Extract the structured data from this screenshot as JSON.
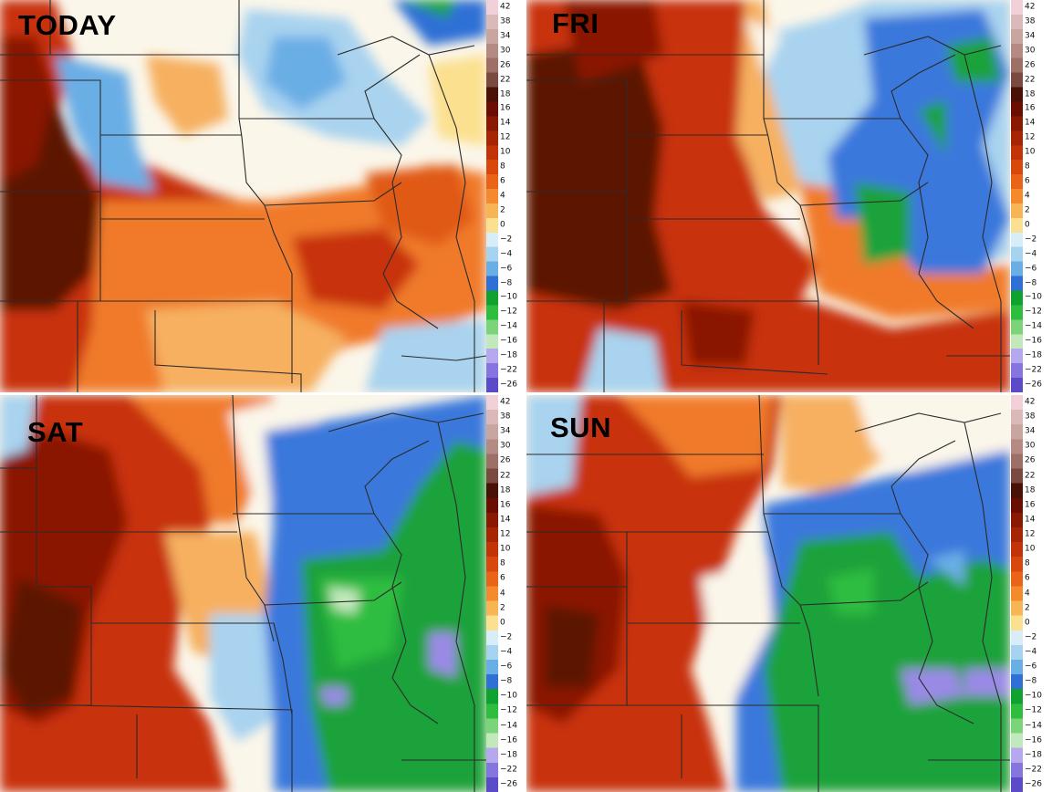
{
  "panels": [
    {
      "id": "today",
      "label": "TODAY"
    },
    {
      "id": "fri",
      "label": "FRI"
    },
    {
      "id": "sat",
      "label": "SAT"
    },
    {
      "id": "sun",
      "label": "SUN"
    }
  ],
  "legend": {
    "ticks": [
      "42",
      "38",
      "34",
      "30",
      "26",
      "22",
      "18",
      "16",
      "14",
      "12",
      "10",
      "8",
      "6",
      "4",
      "2",
      "0",
      "−2",
      "−4",
      "−6",
      "−8",
      "−10",
      "−12",
      "−14",
      "−16",
      "−18",
      "−22",
      "−26"
    ],
    "colors": [
      "#f1d0d8",
      "#dcb9b9",
      "#c9a59f",
      "#b48a82",
      "#9e6f66",
      "#7a4a41",
      "#4a1206",
      "#6b0e02",
      "#8a1903",
      "#a62505",
      "#c23307",
      "#d8480c",
      "#e96318",
      "#f58a2c",
      "#f7b556",
      "#fbe08f",
      "#d7edf7",
      "#a6d4f0",
      "#6aaee6",
      "#2f6fd6",
      "#0fa231",
      "#2fbd3f",
      "#7cd47a",
      "#c2e9bc",
      "#b6a8ee",
      "#8675de",
      "#5c4bc8"
    ]
  },
  "colors": {
    "deep_warm": "#5c1205",
    "warm": "#c8310a",
    "mild_warm": "#f07a2a",
    "light_warm": "#f6b060",
    "neutral": "#fbf7ee",
    "light_cool": "#a9d3ef",
    "cool": "#3a78dc",
    "cold": "#1aa23a",
    "very_cold": "#9a8ae6",
    "border": "#2b2b2b"
  }
}
